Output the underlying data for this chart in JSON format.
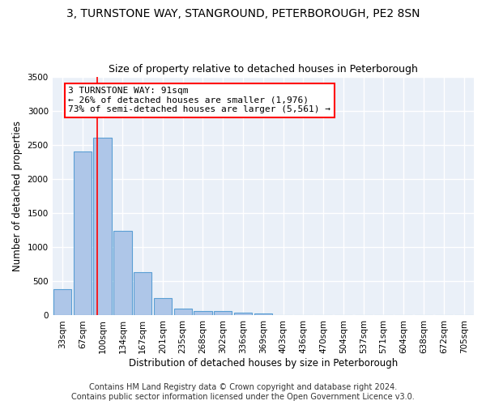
{
  "title": "3, TURNSTONE WAY, STANGROUND, PETERBOROUGH, PE2 8SN",
  "subtitle": "Size of property relative to detached houses in Peterborough",
  "xlabel": "Distribution of detached houses by size in Peterborough",
  "ylabel": "Number of detached properties",
  "categories": [
    "33sqm",
    "67sqm",
    "100sqm",
    "134sqm",
    "167sqm",
    "201sqm",
    "235sqm",
    "268sqm",
    "302sqm",
    "336sqm",
    "369sqm",
    "403sqm",
    "436sqm",
    "470sqm",
    "504sqm",
    "537sqm",
    "571sqm",
    "604sqm",
    "638sqm",
    "672sqm",
    "705sqm"
  ],
  "values": [
    390,
    2400,
    2600,
    1240,
    640,
    260,
    100,
    60,
    60,
    40,
    30,
    0,
    0,
    0,
    0,
    0,
    0,
    0,
    0,
    0,
    0
  ],
  "bar_color": "#aec6e8",
  "bar_edge_color": "#5a9fd4",
  "bar_edge_width": 0.8,
  "ylim": [
    0,
    3500
  ],
  "yticks": [
    0,
    500,
    1000,
    1500,
    2000,
    2500,
    3000,
    3500
  ],
  "annotation_text": "3 TURNSTONE WAY: 91sqm\n← 26% of detached houses are smaller (1,976)\n73% of semi-detached houses are larger (5,561) →",
  "footer_line1": "Contains HM Land Registry data © Crown copyright and database right 2024.",
  "footer_line2": "Contains public sector information licensed under the Open Government Licence v3.0.",
  "background_color": "#eaf0f8",
  "grid_color": "#d8e4f0",
  "title_fontsize": 10,
  "subtitle_fontsize": 9,
  "axis_label_fontsize": 8.5,
  "tick_fontsize": 7.5,
  "annotation_fontsize": 8,
  "footer_fontsize": 7
}
